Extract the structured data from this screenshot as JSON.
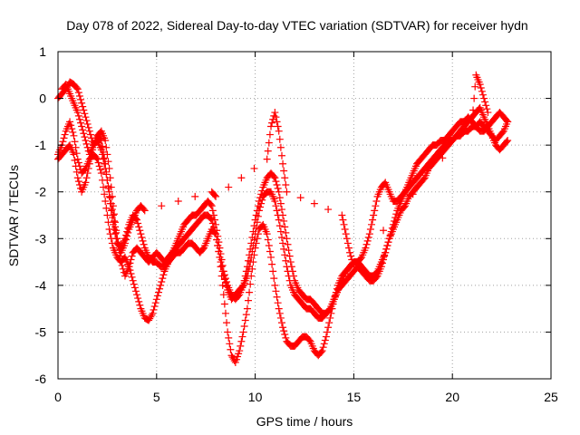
{
  "chart_data": {
    "type": "scatter",
    "title": "Day 078 of 2022, Sidereal Day-to-day VTEC variation (SDTVAR) for receiver hydn",
    "xlabel": "GPS time / hours",
    "ylabel": "SDTVAR / TECUs",
    "xlim": [
      0,
      25
    ],
    "ylim": [
      -6,
      1
    ],
    "xticks": [
      0,
      5,
      10,
      15,
      20,
      25
    ],
    "yticks": [
      1,
      0,
      -1,
      -2,
      -3,
      -4,
      -5,
      -6
    ],
    "grid": true,
    "marker": "plus",
    "color": "#ff0000",
    "series": [
      {
        "x": [
          0.0,
          0.2,
          0.4,
          0.6,
          0.8,
          1.0,
          1.2,
          1.4,
          1.6,
          1.8,
          2.0,
          2.2,
          2.4,
          2.6,
          2.8,
          3.0,
          3.2,
          3.4,
          3.6,
          3.8,
          4.0,
          4.2,
          4.4,
          4.6,
          4.8,
          5.0,
          5.2,
          5.4,
          5.6,
          5.8,
          6.0,
          6.2,
          6.4,
          6.6,
          6.8,
          7.0,
          7.2,
          7.4,
          7.6,
          7.8,
          8.0,
          8.2,
          8.4,
          8.6,
          8.8,
          9.0,
          9.2,
          9.4,
          9.6,
          9.8,
          10.0,
          10.2,
          10.4,
          10.6,
          10.8,
          11.0,
          11.2,
          11.4,
          11.6,
          11.8,
          12.0,
          12.2,
          12.4,
          12.6,
          12.8,
          13.0,
          13.2,
          13.4,
          13.6,
          13.8,
          14.0,
          14.2,
          14.4,
          14.6,
          14.8,
          15.0,
          15.2,
          15.4,
          15.6,
          15.8,
          16.0,
          16.2,
          16.4,
          16.6,
          16.8,
          17.0,
          17.2,
          17.4,
          17.6,
          17.8,
          18.0,
          18.2,
          18.4,
          18.6,
          18.8,
          19.0,
          19.2,
          19.4,
          19.6,
          19.8,
          20.0,
          20.2,
          20.4,
          20.6,
          20.8,
          21.0,
          21.2,
          21.4,
          21.6,
          21.8,
          22.0,
          22.2,
          22.4,
          22.6,
          22.8
        ],
        "y": [
          0.0,
          0.1,
          0.2,
          0.35,
          0.3,
          0.2,
          -0.1,
          -0.4,
          -0.7,
          -1.0,
          -0.9,
          -1.1,
          -1.5,
          -2.0,
          -2.5,
          -3.0,
          -3.5,
          -3.8,
          -3.6,
          -3.3,
          -3.2,
          -3.3,
          -3.4,
          -3.5,
          -3.4,
          -3.3,
          -3.4,
          -3.5,
          -3.4,
          -3.3,
          -3.2,
          -3.1,
          -3.0,
          -2.9,
          -2.8,
          -2.7,
          -2.6,
          -2.5,
          -2.5,
          -2.6,
          -2.9,
          -3.4,
          -3.8,
          -4.1,
          -4.3,
          -4.2,
          -4.1,
          -4.0,
          -3.8,
          -3.4,
          -2.9,
          -2.4,
          -2.1,
          -2.0,
          -2.0,
          -2.2,
          -2.6,
          -3.1,
          -3.6,
          -4.0,
          -4.2,
          -4.3,
          -4.4,
          -4.5,
          -4.5,
          -4.6,
          -4.7,
          -4.7,
          -4.6,
          -4.5,
          -4.3,
          -4.1,
          -4.0,
          -3.9,
          -3.8,
          -3.7,
          -3.6,
          -3.7,
          -3.8,
          -3.9,
          -3.9,
          -3.8,
          -3.6,
          -3.3,
          -3.0,
          -2.7,
          -2.4,
          -2.2,
          -2.0,
          -1.9,
          -1.8,
          -1.7,
          -1.6,
          -1.5,
          -1.4,
          -1.3,
          -1.2,
          -1.1,
          -1.0,
          -0.9,
          -0.9,
          -0.8,
          -0.8,
          -0.7,
          -0.7,
          -0.6,
          -0.6,
          -0.5,
          -0.6,
          -0.7,
          -0.8,
          -0.9,
          -0.8,
          -0.7,
          -0.5
        ]
      },
      {
        "x": [
          0.0,
          0.2,
          0.4,
          0.6,
          0.8,
          1.0,
          1.2,
          1.4,
          1.6,
          1.8,
          2.0,
          2.2,
          2.4,
          2.6,
          2.8,
          3.0,
          3.2,
          3.4,
          3.6,
          3.8,
          4.0,
          4.2,
          4.4,
          4.6,
          4.8,
          5.0,
          5.2,
          5.4,
          5.6,
          5.8,
          6.0,
          6.2,
          6.4,
          6.6,
          6.8,
          7.0,
          7.2,
          7.4,
          7.6,
          7.8,
          8.0,
          8.2,
          8.4,
          8.6,
          8.8,
          9.0,
          9.2,
          9.4,
          9.6,
          9.8,
          10.0,
          10.2,
          10.4,
          10.6,
          10.8,
          11.0,
          11.2,
          11.4,
          11.6,
          11.8,
          12.0,
          12.2,
          12.4,
          12.6,
          12.8,
          13.0,
          13.2,
          13.4,
          13.6,
          13.8,
          14.0,
          14.2,
          14.4,
          14.6,
          14.8,
          15.0,
          15.2,
          15.4,
          15.6,
          15.8,
          16.0,
          16.2,
          16.4,
          16.6,
          16.8,
          17.0,
          17.2,
          17.4,
          17.6,
          17.8,
          18.0,
          18.2,
          18.4,
          18.6,
          18.8,
          19.0,
          19.2,
          19.4,
          19.6,
          19.8,
          20.0,
          20.2,
          20.4,
          20.6,
          20.8,
          21.0,
          21.2,
          21.4,
          21.6,
          21.8,
          22.0,
          22.2,
          22.4,
          22.6,
          22.8
        ],
        "y": [
          -1.2,
          -1.0,
          -0.7,
          -0.5,
          -0.8,
          -1.3,
          -1.6,
          -1.5,
          -1.3,
          -1.2,
          -1.3,
          -1.6,
          -2.2,
          -2.8,
          -3.2,
          -3.4,
          -3.5,
          -3.4,
          -3.6,
          -3.9,
          -4.2,
          -4.5,
          -4.7,
          -4.75,
          -4.6,
          -4.3,
          -4.0,
          -3.7,
          -3.5,
          -3.4,
          -3.3,
          -3.3,
          -3.2,
          -3.1,
          -3.1,
          -3.2,
          -3.3,
          -3.2,
          -3.0,
          -2.8,
          -2.9,
          -3.4,
          -4.2,
          -5.0,
          -5.5,
          -5.65,
          -5.4,
          -5.0,
          -4.5,
          -3.8,
          -3.2,
          -2.8,
          -2.7,
          -2.9,
          -3.4,
          -4.0,
          -4.5,
          -4.9,
          -5.2,
          -5.3,
          -5.3,
          -5.2,
          -5.1,
          -5.1,
          -5.2,
          -5.4,
          -5.5,
          -5.4,
          -5.1,
          -4.7,
          -4.3,
          -4.0,
          -3.8,
          -3.7,
          -3.6,
          -3.5,
          -3.5,
          -3.6,
          -3.7,
          -3.8,
          -3.8,
          -3.7,
          -3.5,
          -3.3,
          -3.0,
          -2.8,
          -2.6,
          -2.4,
          -2.3,
          -2.1,
          -2.0,
          -1.9,
          -1.8,
          -1.7,
          -1.5,
          -1.4,
          -1.3,
          -1.2,
          -1.1,
          -1.0,
          -0.9,
          -0.8,
          -0.7,
          -0.6,
          -0.5,
          -0.4,
          -0.3,
          -0.2,
          -0.4,
          -0.6,
          -0.8,
          -1.0,
          -1.1,
          -1.0,
          -0.9
        ]
      },
      {
        "x": [
          0.0,
          0.2,
          0.4,
          0.6,
          0.8,
          1.0,
          1.2,
          1.4,
          1.6,
          1.8,
          2.0,
          2.2,
          2.4,
          2.6,
          2.8,
          3.0,
          3.2,
          3.4,
          3.6,
          3.8,
          4.0,
          4.2,
          4.4,
          4.6,
          4.8,
          5.0,
          5.2,
          5.4,
          5.6,
          5.8,
          6.0,
          6.2,
          6.4,
          6.6,
          6.8,
          7.0,
          7.2,
          7.4,
          7.6,
          7.8,
          8.0,
          8.2,
          8.4,
          8.6,
          8.8,
          9.0,
          9.2,
          9.4,
          9.6,
          9.8,
          10.0,
          10.2,
          10.4,
          10.6,
          10.8,
          11.0,
          11.2,
          11.4,
          11.6,
          11.8,
          12.0,
          12.2,
          12.4,
          12.6,
          12.8,
          13.0,
          13.2,
          13.4,
          13.6,
          13.8,
          14.0,
          14.2,
          14.4,
          14.6,
          14.8,
          15.0,
          15.2,
          15.4,
          15.6,
          15.8,
          16.0,
          16.2,
          16.4,
          16.6,
          16.8,
          17.0,
          17.2,
          17.4,
          17.6,
          17.8,
          18.0,
          18.2,
          18.4,
          18.6,
          18.8,
          19.0,
          19.2,
          19.4,
          19.6,
          19.8,
          20.0,
          20.2,
          20.4,
          20.6,
          20.8,
          21.0,
          21.2,
          21.4,
          21.6,
          21.8,
          22.0,
          22.2,
          22.4,
          22.6,
          22.8
        ],
        "y": [
          -1.3,
          -1.2,
          -1.1,
          -1.0,
          -1.2,
          -1.7,
          -2.0,
          -1.8,
          -1.4,
          -1.0,
          -0.8,
          -0.9,
          -1.4,
          -2.1,
          -2.7,
          -3.1,
          -3.2,
          -3.0,
          -2.7,
          -2.5,
          -2.6,
          -2.9,
          -3.2,
          -3.4,
          -3.5,
          -3.5,
          -3.6,
          -3.6,
          -3.5,
          -3.3,
          -3.1,
          -2.9,
          -2.7,
          -2.6,
          -2.5,
          -2.5,
          -2.4,
          -2.3,
          -2.2,
          -2.3,
          -2.7,
          -3.2,
          -3.7,
          -4.0,
          -4.2,
          -4.3,
          -4.2,
          -4.0,
          -3.6,
          -3.1,
          -2.6,
          -2.2,
          -1.9,
          -1.7,
          -1.6,
          -1.7,
          -2.0,
          -2.5,
          -3.0,
          -3.5,
          -3.9,
          -4.1,
          -4.2,
          -4.3,
          -4.3,
          -4.4,
          -4.5,
          -4.6,
          -4.6,
          -4.5,
          -4.3,
          -4.1,
          -3.9,
          -3.7,
          -3.6,
          -3.5,
          -3.5,
          -3.4,
          -3.2,
          -2.9,
          -2.5,
          -2.1,
          -1.9,
          -1.8,
          -2.0,
          -2.2,
          -2.2,
          -2.1,
          -2.0,
          -1.8,
          -1.6,
          -1.4,
          -1.3,
          -1.2,
          -1.1,
          -1.0,
          -1.0,
          -0.9,
          -0.9,
          -0.8,
          -0.7,
          -0.6,
          -0.5,
          -0.5,
          -0.4,
          -0.5,
          -0.6,
          -0.7,
          -0.7,
          -0.6,
          -0.5,
          -0.4,
          -0.3,
          -0.4,
          -0.5
        ]
      },
      {
        "x": [
          0.2,
          0.4,
          0.6,
          0.8,
          1.0,
          1.2,
          1.4,
          1.6,
          1.8,
          2.0,
          2.2,
          2.4,
          2.6,
          2.8,
          3.0,
          3.2,
          3.4,
          3.6,
          3.8,
          4.0,
          4.2,
          4.4,
          7.8,
          8.0,
          10.6,
          10.8,
          11.0,
          11.2,
          11.4,
          11.6,
          14.4,
          14.6,
          14.8,
          15.0,
          21.0,
          21.2,
          21.4,
          21.6,
          21.8
        ],
        "y": [
          0.2,
          0.3,
          0.1,
          -0.1,
          -0.3,
          -0.6,
          -0.9,
          -1.2,
          -1.0,
          -0.8,
          -0.7,
          -0.9,
          -1.5,
          -2.3,
          -3.0,
          -3.3,
          -3.1,
          -2.8,
          -2.6,
          -2.4,
          -2.3,
          -2.4,
          -2.0,
          -2.1,
          -1.3,
          -0.6,
          -0.3,
          -0.7,
          -1.4,
          -2.0,
          -2.5,
          -2.9,
          -3.3,
          -3.6,
          -0.5,
          0.5,
          0.3,
          0.0,
          -0.3
        ]
      }
    ]
  }
}
